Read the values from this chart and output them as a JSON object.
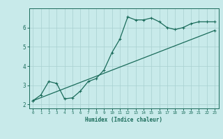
{
  "xlabel": "Humidex (Indice chaleur)",
  "ylabel": "",
  "background_color": "#c8eaea",
  "grid_color": "#a8d0d0",
  "line_color": "#1a6b5a",
  "xlim": [
    -0.5,
    23.5
  ],
  "ylim": [
    1.8,
    7.0
  ],
  "xticks": [
    0,
    1,
    2,
    3,
    4,
    5,
    6,
    7,
    8,
    9,
    10,
    11,
    12,
    13,
    14,
    15,
    16,
    17,
    18,
    19,
    20,
    21,
    22,
    23
  ],
  "yticks": [
    2,
    3,
    4,
    5,
    6
  ],
  "curve1_x": [
    0,
    1,
    2,
    3,
    4,
    5,
    6,
    7,
    8,
    9,
    10,
    11,
    12,
    13,
    14,
    15,
    16,
    17,
    18,
    19,
    20,
    21,
    22,
    23
  ],
  "curve1_y": [
    2.2,
    2.5,
    3.2,
    3.1,
    2.3,
    2.35,
    2.7,
    3.2,
    3.35,
    3.8,
    4.7,
    5.4,
    6.55,
    6.4,
    6.4,
    6.5,
    6.3,
    6.0,
    5.9,
    6.0,
    6.2,
    6.3,
    6.3,
    6.3
  ],
  "curve2_x": [
    0,
    23
  ],
  "curve2_y": [
    2.2,
    5.85
  ]
}
